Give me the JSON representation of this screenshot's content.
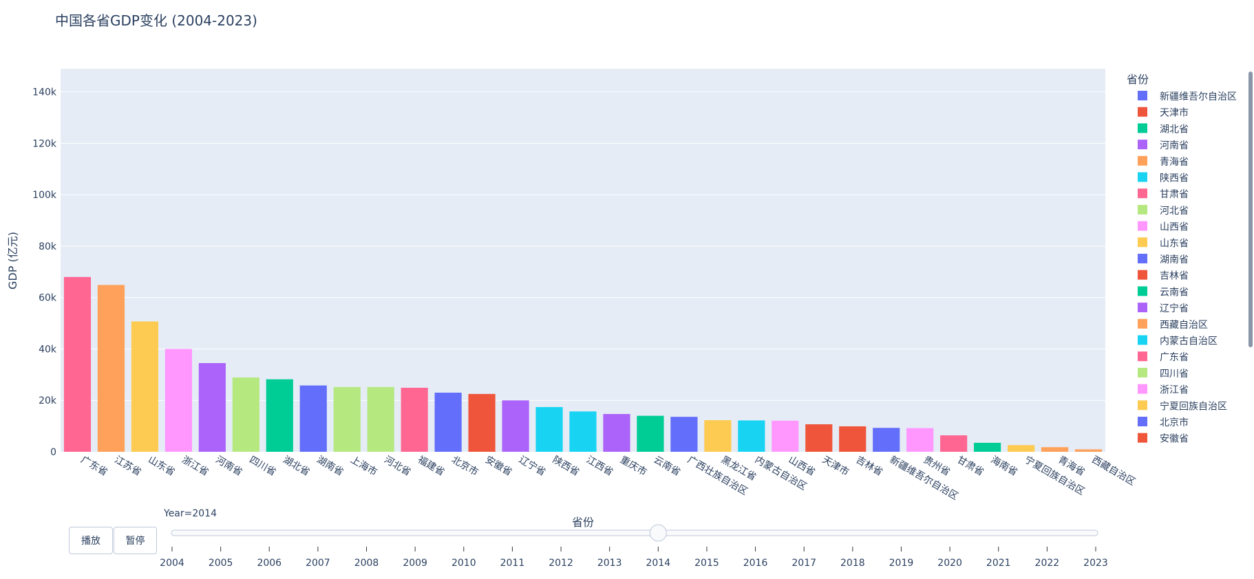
{
  "chart_data": {
    "type": "bar",
    "title": "中国各省GDP变化 (2004-2023)",
    "xlabel": "省份",
    "ylabel": "GDP (亿元)",
    "ylim": [
      0,
      149000
    ],
    "yticks": [
      0,
      20000,
      40000,
      60000,
      80000,
      100000,
      120000,
      140000
    ],
    "ytick_labels": [
      "0",
      "20k",
      "40k",
      "60k",
      "80k",
      "100k",
      "120k",
      "140k"
    ],
    "grid": true,
    "legend_title": "省份",
    "legend_position": "right",
    "categories": [
      "广东省",
      "江苏省",
      "山东省",
      "浙江省",
      "河南省",
      "四川省",
      "湖北省",
      "湖南省",
      "上海市",
      "河北省",
      "福建省",
      "北京市",
      "安徽省",
      "辽宁省",
      "陕西省",
      "江西省",
      "重庆市",
      "云南省",
      "广西壮族自治区",
      "黑龙江省",
      "内蒙古自治区",
      "山西省",
      "天津市",
      "吉林省",
      "新疆维吾尔自治区",
      "贵州省",
      "甘肃省",
      "海南省",
      "宁夏回族自治区",
      "青海省",
      "西藏自治区"
    ],
    "values": [
      68000,
      64900,
      50700,
      40000,
      34500,
      28900,
      28200,
      25800,
      25200,
      25200,
      24900,
      23000,
      22500,
      20000,
      17400,
      15700,
      14700,
      14000,
      13600,
      12300,
      12200,
      12100,
      10700,
      9900,
      9300,
      9200,
      6400,
      3500,
      2600,
      1800,
      950
    ],
    "colors": [
      "#FF6692",
      "#FFA15A",
      "#FECB52",
      "#FF97FF",
      "#AB63FA",
      "#B6E880",
      "#00CC96",
      "#636EFA",
      "#B6E880",
      "#B6E880",
      "#FF6692",
      "#636EFA",
      "#EF553B",
      "#AB63FA",
      "#19D3F3",
      "#19D3F3",
      "#AB63FA",
      "#00CC96",
      "#636EFA",
      "#FECB52",
      "#19D3F3",
      "#FF97FF",
      "#EF553B",
      "#EF553B",
      "#636EFA",
      "#FF97FF",
      "#FF6692",
      "#00CC96",
      "#FECB52",
      "#FFA15A",
      "#FFA15A"
    ],
    "legend": [
      {
        "name": "新疆维吾尔自治区",
        "color": "#636EFA"
      },
      {
        "name": "天津市",
        "color": "#EF553B"
      },
      {
        "name": "湖北省",
        "color": "#00CC96"
      },
      {
        "name": "河南省",
        "color": "#AB63FA"
      },
      {
        "name": "青海省",
        "color": "#FFA15A"
      },
      {
        "name": "陕西省",
        "color": "#19D3F3"
      },
      {
        "name": "甘肃省",
        "color": "#FF6692"
      },
      {
        "name": "河北省",
        "color": "#B6E880"
      },
      {
        "name": "山西省",
        "color": "#FF97FF"
      },
      {
        "name": "山东省",
        "color": "#FECB52"
      },
      {
        "name": "湖南省",
        "color": "#636EFA"
      },
      {
        "name": "吉林省",
        "color": "#EF553B"
      },
      {
        "name": "云南省",
        "color": "#00CC96"
      },
      {
        "name": "辽宁省",
        "color": "#AB63FA"
      },
      {
        "name": "西藏自治区",
        "color": "#FFA15A"
      },
      {
        "name": "内蒙古自治区",
        "color": "#19D3F3"
      },
      {
        "name": "广东省",
        "color": "#FF6692"
      },
      {
        "name": "四川省",
        "color": "#B6E880"
      },
      {
        "name": "浙江省",
        "color": "#FF97FF"
      },
      {
        "name": "宁夏回族自治区",
        "color": "#FECB52"
      },
      {
        "name": "北京市",
        "color": "#636EFA"
      },
      {
        "name": "安徽省",
        "color": "#EF553B"
      }
    ]
  },
  "slider": {
    "current_label": "Year=2014",
    "years": [
      "2004",
      "2005",
      "2006",
      "2007",
      "2008",
      "2009",
      "2010",
      "2011",
      "2012",
      "2013",
      "2014",
      "2015",
      "2016",
      "2017",
      "2018",
      "2019",
      "2020",
      "2021",
      "2022",
      "2023"
    ],
    "selected_index": 10
  },
  "controls": {
    "play_label": "播放",
    "pause_label": "暂停"
  },
  "colors": {
    "plot_bg": "#E5ECF6",
    "text": "#2a3f5f",
    "grid": "#ffffff"
  }
}
